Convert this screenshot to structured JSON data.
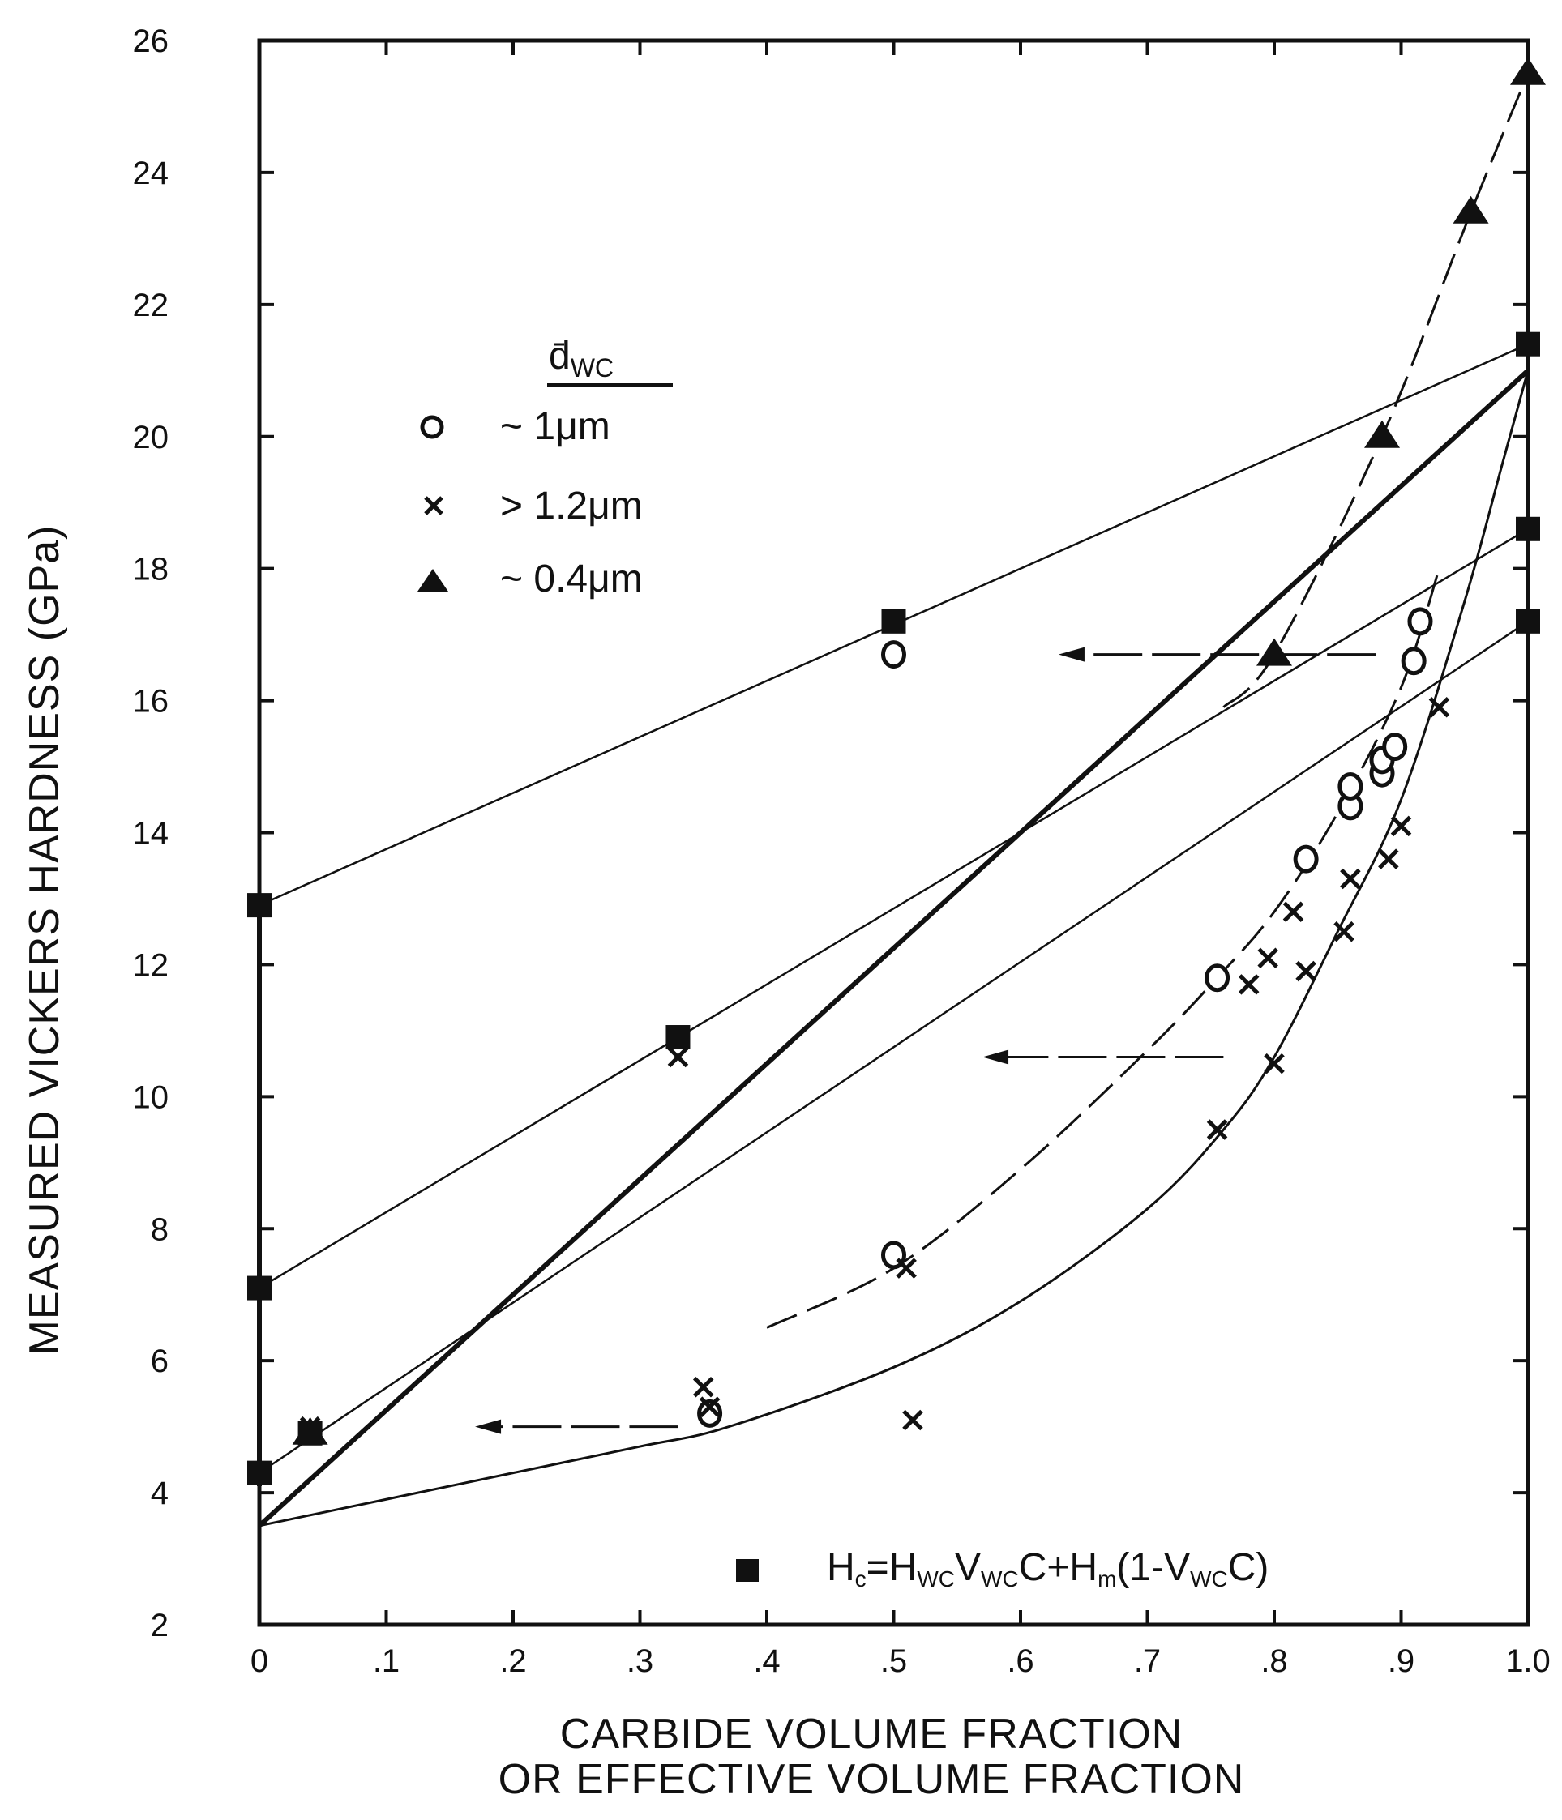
{
  "chart_data": {
    "type": "scatter",
    "title": "",
    "xlabel_line1": "CARBIDE VOLUME FRACTION",
    "xlabel_line2": "OR EFFECTIVE VOLUME FRACTION",
    "ylabel": "MEASURED VICKERS HARDNESS (GPa)",
    "xlim": [
      0,
      1.0
    ],
    "ylim": [
      2,
      26
    ],
    "x_ticks": [
      {
        "v": 0,
        "label": "0"
      },
      {
        "v": 0.1,
        "label": ".1"
      },
      {
        "v": 0.2,
        "label": ".2"
      },
      {
        "v": 0.3,
        "label": ".3"
      },
      {
        "v": 0.4,
        "label": ".4"
      },
      {
        "v": 0.5,
        "label": ".5"
      },
      {
        "v": 0.6,
        "label": ".6"
      },
      {
        "v": 0.7,
        "label": ".7"
      },
      {
        "v": 0.8,
        "label": ".8"
      },
      {
        "v": 0.9,
        "label": ".9"
      },
      {
        "v": 1.0,
        "label": "1.0"
      }
    ],
    "y_ticks": [
      {
        "v": 2,
        "label": "2"
      },
      {
        "v": 4,
        "label": "4"
      },
      {
        "v": 6,
        "label": "6"
      },
      {
        "v": 8,
        "label": "8"
      },
      {
        "v": 10,
        "label": "10"
      },
      {
        "v": 12,
        "label": "12"
      },
      {
        "v": 14,
        "label": "14"
      },
      {
        "v": 16,
        "label": "16"
      },
      {
        "v": 18,
        "label": "18"
      },
      {
        "v": 20,
        "label": "20"
      },
      {
        "v": 22,
        "label": "22"
      },
      {
        "v": 24,
        "label": "24"
      },
      {
        "v": 26,
        "label": "26"
      }
    ],
    "legend": {
      "title": "d̄",
      "title_sub": "WC",
      "entries": [
        {
          "marker": "circle",
          "label": "~ 1μm"
        },
        {
          "marker": "x",
          "label": "> 1.2μm"
        },
        {
          "marker": "triangle",
          "label": "~ 0.4μm"
        }
      ],
      "equation": "Hc=HWCVWCC+Hm(1-VWCC)",
      "equation_parts": {
        "h": "H",
        "c": "c",
        "eq": "=",
        "wc": "WC",
        "v": "V",
        "cc": "C",
        "plus": "+",
        "m": "m",
        "open": "(1-",
        "close": ")"
      }
    },
    "series": [
      {
        "name": "~ 1μm",
        "marker": "circle",
        "points": [
          [
            0.355,
            5.2
          ],
          [
            0.5,
            7.6
          ],
          [
            0.5,
            16.7
          ],
          [
            0.755,
            11.8
          ],
          [
            0.825,
            13.6
          ],
          [
            0.86,
            14.4
          ],
          [
            0.86,
            14.7
          ],
          [
            0.885,
            14.9
          ],
          [
            0.885,
            15.1
          ],
          [
            0.895,
            15.3
          ],
          [
            0.91,
            16.6
          ],
          [
            0.915,
            17.2
          ]
        ]
      },
      {
        "name": "> 1.2μm",
        "marker": "x",
        "points": [
          [
            0.04,
            5.0
          ],
          [
            0.33,
            10.6
          ],
          [
            0.35,
            5.6
          ],
          [
            0.355,
            5.3
          ],
          [
            0.51,
            7.4
          ],
          [
            0.515,
            5.1
          ],
          [
            0.755,
            9.5
          ],
          [
            0.78,
            11.7
          ],
          [
            0.795,
            12.1
          ],
          [
            0.8,
            10.5
          ],
          [
            0.815,
            12.8
          ],
          [
            0.825,
            11.9
          ],
          [
            0.855,
            12.5
          ],
          [
            0.86,
            13.3
          ],
          [
            0.89,
            13.6
          ],
          [
            0.9,
            14.1
          ],
          [
            0.93,
            15.9
          ]
        ]
      },
      {
        "name": "~ 0.4μm",
        "marker": "triangle",
        "points": [
          [
            0.04,
            4.9
          ],
          [
            0.8,
            16.7
          ],
          [
            0.885,
            20.0
          ],
          [
            0.955,
            23.4
          ],
          [
            1.0,
            25.5
          ]
        ]
      },
      {
        "name": "Hc=HWCVWCC+Hm(1-VWCC)",
        "marker": "square",
        "points": [
          [
            0,
            12.9
          ],
          [
            0,
            7.1
          ],
          [
            0,
            4.3
          ],
          [
            0.04,
            4.9
          ],
          [
            0.33,
            10.9
          ],
          [
            0.5,
            17.2
          ],
          [
            1.0,
            21.4
          ],
          [
            1.0,
            18.6
          ],
          [
            1.0,
            17.2
          ]
        ]
      }
    ],
    "lines": [
      {
        "style": "thin",
        "x": [
          0,
          1.0
        ],
        "y": [
          12.9,
          21.4
        ]
      },
      {
        "style": "thin",
        "x": [
          0,
          1.0
        ],
        "y": [
          7.1,
          18.6
        ]
      },
      {
        "style": "thin",
        "x": [
          0,
          1.0
        ],
        "y": [
          4.3,
          17.2
        ]
      },
      {
        "style": "bold",
        "x": [
          0,
          1.0
        ],
        "y": [
          3.5,
          21.0
        ]
      },
      {
        "style": "bold",
        "x": [
          0,
          0
        ],
        "y": [
          4.1,
          12.9
        ]
      },
      {
        "style": "bold",
        "x": [
          1.0,
          1.0
        ],
        "y": [
          17.2,
          25.5
        ]
      }
    ],
    "curves": [
      {
        "style": "solid",
        "x": [
          0,
          0.1,
          0.2,
          0.3,
          0.37,
          0.5,
          0.6,
          0.7,
          0.76,
          0.8,
          0.85,
          0.9,
          0.95,
          0.98,
          1.0
        ],
        "y": [
          3.5,
          3.9,
          4.3,
          4.7,
          5.0,
          5.9,
          6.9,
          8.3,
          9.5,
          10.6,
          12.5,
          14.5,
          17.5,
          19.6,
          21.0
        ]
      },
      {
        "style": "dash",
        "x": [
          0.4,
          0.5,
          0.6,
          0.7,
          0.755,
          0.8,
          0.85,
          0.9,
          0.93
        ],
        "y": [
          6.5,
          7.4,
          8.9,
          10.7,
          11.8,
          12.8,
          14.3,
          16.2,
          18.0
        ]
      },
      {
        "style": "dash",
        "x": [
          0.76,
          0.8,
          0.885,
          0.955,
          1.0
        ],
        "y": [
          15.9,
          16.7,
          20.0,
          23.4,
          25.5
        ]
      }
    ],
    "arrows": [
      {
        "from_x": 0.88,
        "to_x": 0.63,
        "y": 16.7
      },
      {
        "from_x": 0.76,
        "to_x": 0.57,
        "y": 10.6
      },
      {
        "from_x": 0.33,
        "to_x": 0.17,
        "y": 5.0
      }
    ]
  }
}
